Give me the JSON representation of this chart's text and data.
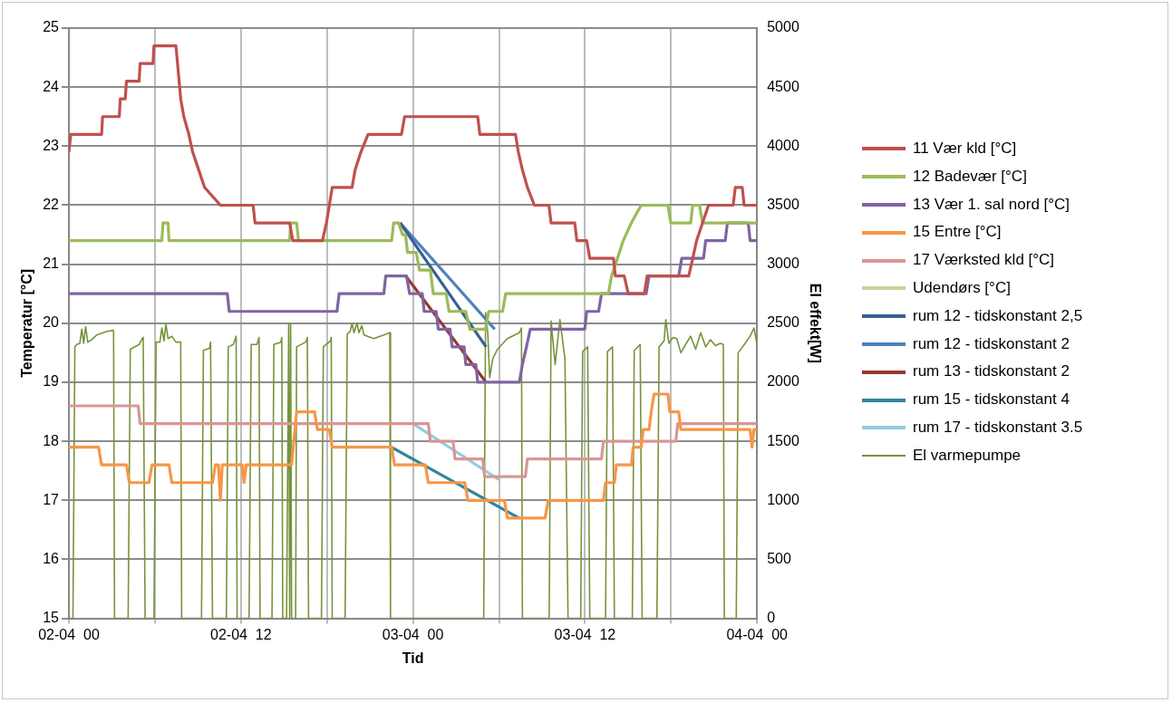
{
  "chart_data": {
    "type": "line",
    "xlabel": "Tid",
    "ylabel": "Temperatur [°C]",
    "y2label": "El effekt[W]",
    "xlim": [
      "--04-02T00:00",
      "--04-04T00:00"
    ],
    "xticks": [
      {
        "value": "--04-02T00:00",
        "label": "02-04  00"
      },
      {
        "value": "--04-02T06:00",
        "label": null
      },
      {
        "value": "--04-02T12:00",
        "label": "02-04  12"
      },
      {
        "value": "--04-02T18:00",
        "label": null
      },
      {
        "value": "--04-03T00:00",
        "label": "03-04  00"
      },
      {
        "value": "--04-03T06:00",
        "label": null
      },
      {
        "value": "--04-03T12:00",
        "label": "03-04  12"
      },
      {
        "value": "--04-03T18:00",
        "label": null
      },
      {
        "value": "--04-04T00:00",
        "label": "04-04  00"
      }
    ],
    "ylim": [
      15,
      25
    ],
    "yticks": [
      15,
      16,
      17,
      18,
      19,
      20,
      21,
      22,
      23,
      24,
      25
    ],
    "y2lim": [
      0,
      5000
    ],
    "y2ticks": [
      0,
      500,
      1000,
      1500,
      2000,
      2500,
      3000,
      3500,
      4000,
      4500,
      5000
    ],
    "grid": true,
    "legend": "right",
    "series": [
      {
        "name": "11 Vær kld [°C]",
        "color": "#c0504d",
        "x": [
          "--04-02T00:00",
          "--04-02T00:08",
          "--04-02T02:17",
          "--04-02T02:21",
          "--04-02T03:31",
          "--04-02T03:35",
          "--04-02T03:56",
          "--04-02T04:01",
          "--04-02T04:54",
          "--04-02T04:58",
          "--04-02T05:52",
          "--04-02T05:56",
          "--04-02T07:28",
          "--04-02T07:48",
          "--04-02T08:01",
          "--04-02T08:22",
          "--04-02T08:38",
          "--04-02T09:03",
          "--04-02T09:28",
          "--04-02T10:34",
          "--04-02T12:51",
          "--04-02T12:59",
          "--04-02T15:24",
          "--04-02T15:37",
          "--04-02T17:41",
          "--04-02T17:58",
          "--04-02T18:10",
          "--04-02T18:22",
          "--04-02T19:45",
          "--04-02T19:58",
          "--04-02T20:22",
          "--04-02T20:52",
          "--04-02T23:12",
          "--04-02T23:25",
          "--04-03T04:31",
          "--04-03T04:40",
          "--04-03T07:09",
          "--04-03T07:21",
          "--04-03T07:38",
          "--04-03T07:59",
          "--04-03T08:28",
          "--04-03T09:29",
          "--04-03T09:38",
          "--04-03T11:17",
          "--04-03T11:26",
          "--04-03T12:07",
          "--04-03T12:20",
          "--04-03T13:59",
          "--04-03T14:07",
          "--04-03T14:44",
          "--04-03T15:01",
          "--04-03T16:08",
          "--04-03T16:20",
          "--04-03T19:14",
          "--04-03T19:31",
          "--04-03T19:47",
          "--04-03T20:12",
          "--04-03T20:37",
          "--04-03T22:20",
          "--04-03T22:29",
          "--04-03T22:58",
          "--04-03T23:06",
          "--04-04T00:00"
        ],
        "values": [
          22.9,
          23.2,
          23.2,
          23.5,
          23.5,
          23.8,
          23.8,
          24.1,
          24.1,
          24.4,
          24.4,
          24.7,
          24.7,
          23.8,
          23.5,
          23.2,
          22.9,
          22.6,
          22.3,
          22.0,
          22.0,
          21.7,
          21.7,
          21.4,
          21.4,
          21.7,
          22.0,
          22.3,
          22.3,
          22.6,
          22.9,
          23.2,
          23.2,
          23.5,
          23.5,
          23.2,
          23.2,
          22.9,
          22.6,
          22.3,
          22.0,
          22.0,
          21.7,
          21.7,
          21.4,
          21.4,
          21.1,
          21.1,
          20.8,
          20.8,
          20.5,
          20.5,
          20.8,
          20.8,
          21.1,
          21.4,
          21.7,
          22.0,
          22.0,
          22.3,
          22.3,
          22.0,
          22.0
        ]
      },
      {
        "name": "12 Badevær [°C]",
        "color": "#9bbb59",
        "x": [
          "--04-02T00:00",
          "--04-02T06:29",
          "--04-02T06:34",
          "--04-02T06:55",
          "--04-02T06:59",
          "--04-02T15:24",
          "--04-02T15:28",
          "--04-02T15:53",
          "--04-02T16:01",
          "--04-02T22:31",
          "--04-02T22:39",
          "--04-02T23:00",
          "--04-02T23:16",
          "--04-02T23:29",
          "--04-02T23:37",
          "--04-03T00:14",
          "--04-03T00:27",
          "--04-03T01:13",
          "--04-03T01:25",
          "--04-03T02:19",
          "--04-03T02:31",
          "--04-03T03:41",
          "--04-03T03:58",
          "--04-03T05:04",
          "--04-03T05:17",
          "--04-03T06:15",
          "--04-03T06:28",
          "--04-03T13:38",
          "--04-03T13:51",
          "--04-03T14:16",
          "--04-03T14:40",
          "--04-03T15:14",
          "--04-03T15:55",
          "--04-03T17:47",
          "--04-03T17:59",
          "--04-03T19:22",
          "--04-03T19:31",
          "--04-03T19:59",
          "--04-03T20:12",
          "--04-04T00:00"
        ],
        "values": [
          21.4,
          21.4,
          21.7,
          21.7,
          21.4,
          21.4,
          21.7,
          21.7,
          21.4,
          21.4,
          21.7,
          21.7,
          21.5,
          21.5,
          21.2,
          21.2,
          20.9,
          20.9,
          20.5,
          20.5,
          20.2,
          20.2,
          19.9,
          19.9,
          20.2,
          20.2,
          20.5,
          20.5,
          20.8,
          21.1,
          21.4,
          21.7,
          22.0,
          22.0,
          21.7,
          21.7,
          22.0,
          22.0,
          21.7,
          21.7
        ]
      },
      {
        "name": "13 Vær 1. sal nord [°C]",
        "color": "#8064a2",
        "x": [
          "--04-02T00:00",
          "--04-02T11:03",
          "--04-02T11:11",
          "--04-02T18:42",
          "--04-02T18:51",
          "--04-02T21:58",
          "--04-02T22:06",
          "--04-02T23:33",
          "--04-02T23:46",
          "--04-03T00:39",
          "--04-03T00:47",
          "--04-03T01:37",
          "--04-03T01:46",
          "--04-03T02:35",
          "--04-03T02:44",
          "--04-03T03:34",
          "--04-03T03:41",
          "--04-03T04:23",
          "--04-03T04:31",
          "--04-03T07:25",
          "--04-03T07:38",
          "--04-03T07:55",
          "--04-03T08:11",
          "--04-03T11:59",
          "--04-03T12:07",
          "--04-03T12:57",
          "--04-03T13:09",
          "--04-03T16:16",
          "--04-03T16:28",
          "--04-03T18:32",
          "--04-03T18:45",
          "--04-03T20:16",
          "--04-03T20:25",
          "--04-03T21:47",
          "--04-03T21:56",
          "--04-03T23:23",
          "--04-03T23:31",
          "--04-04T00:00"
        ],
        "values": [
          20.5,
          20.5,
          20.2,
          20.2,
          20.5,
          20.5,
          20.8,
          20.8,
          20.5,
          20.5,
          20.2,
          20.2,
          19.9,
          19.9,
          19.6,
          19.6,
          19.3,
          19.3,
          19.0,
          19.0,
          19.3,
          19.6,
          19.9,
          19.9,
          20.2,
          20.2,
          20.5,
          20.5,
          20.8,
          20.8,
          21.1,
          21.1,
          21.4,
          21.4,
          21.7,
          21.7,
          21.4,
          21.4
        ]
      },
      {
        "name": "15 Entre [°C]",
        "color": "#f79646",
        "x": [
          "--04-02T00:00",
          "--04-02T02:04",
          "--04-02T02:17",
          "--04-02T04:01",
          "--04-02T04:13",
          "--04-02T05:35",
          "--04-02T05:48",
          "--04-02T06:59",
          "--04-02T07:11",
          "--04-02T10:01",
          "--04-02T10:13",
          "--04-02T10:26",
          "--04-02T10:34",
          "--04-02T10:42",
          "--04-02T12:05",
          "--04-02T12:13",
          "--04-02T12:22",
          "--04-02T15:32",
          "--04-02T15:53",
          "--04-02T17:08",
          "--04-02T17:20",
          "--04-02T18:10",
          "--04-02T18:22",
          "--04-02T22:31",
          "--04-02T22:43",
          "--04-03T00:52",
          "--04-03T01:04",
          "--04-03T03:37",
          "--04-03T03:50",
          "--04-03T06:23",
          "--04-03T06:35",
          "--04-03T09:13",
          "--04-03T09:26",
          "--04-03T13:17",
          "--04-03T13:26",
          "--04-03T14:03",
          "--04-03T14:11",
          "--04-03T15:14",
          "--04-03T15:22",
          "--04-03T15:55",
          "--04-03T16:04",
          "--04-03T16:28",
          "--04-03T16:37",
          "--04-03T16:49",
          "--04-03T17:47",
          "--04-03T17:55",
          "--04-03T18:32",
          "--04-03T18:41",
          "--04-03T23:31",
          "--04-03T23:39",
          "--04-03T23:47",
          "--04-04T00:00"
        ],
        "values": [
          17.9,
          17.9,
          17.6,
          17.6,
          17.3,
          17.3,
          17.6,
          17.6,
          17.3,
          17.3,
          17.6,
          17.6,
          17.0,
          17.6,
          17.6,
          17.3,
          17.6,
          17.6,
          18.5,
          18.5,
          18.2,
          18.2,
          17.9,
          17.9,
          17.6,
          17.6,
          17.3,
          17.3,
          17.0,
          17.0,
          16.7,
          16.7,
          17.0,
          17.0,
          17.3,
          17.3,
          17.6,
          17.6,
          17.9,
          17.9,
          18.2,
          18.2,
          18.5,
          18.8,
          18.8,
          18.5,
          18.5,
          18.2,
          18.2,
          17.9,
          18.2,
          18.2
        ]
      },
      {
        "name": "17 Værksted kld [°C]",
        "color": "#d99694",
        "x": [
          "--04-02T00:00",
          "--04-02T04:50",
          "--04-02T04:58",
          "--04-03T01:04",
          "--04-03T01:13",
          "--04-03T02:48",
          "--04-03T02:56",
          "--04-03T04:52",
          "--04-03T05:00",
          "--04-03T07:50",
          "--04-03T07:59",
          "--04-03T13:09",
          "--04-03T13:17",
          "--04-03T18:20",
          "--04-03T18:28",
          "--04-04T00:00"
        ],
        "values": [
          18.6,
          18.6,
          18.3,
          18.3,
          18.0,
          18.0,
          17.7,
          17.7,
          17.4,
          17.4,
          17.7,
          17.7,
          18.0,
          18.0,
          18.3,
          18.3
        ]
      },
      {
        "name": "Udendørs [°C]",
        "color": "#c3d69b"
      },
      {
        "name": "rum 12 - tidskonstant 2,5",
        "color": "#376092",
        "x": [
          "--04-02T23:06",
          "--04-03T05:06"
        ],
        "values": [
          21.7,
          19.6
        ]
      },
      {
        "name": "rum 12 - tidskonstant 2",
        "color": "#4f81bd",
        "x": [
          "--04-02T23:06",
          "--04-03T05:42"
        ],
        "values": [
          21.7,
          19.9
        ]
      },
      {
        "name": "rum 13 - tidskonstant 2",
        "color": "#953735",
        "x": [
          "--04-02T23:30",
          "--04-03T05:06"
        ],
        "values": [
          20.8,
          19.0
        ]
      },
      {
        "name": "rum 15 - tidskonstant 4",
        "color": "#31859c",
        "x": [
          "--04-02T22:30",
          "--04-03T07:24"
        ],
        "values": [
          17.9,
          16.7
        ]
      },
      {
        "name": "rum 17 - tidskonstant 3.5",
        "color": "#93cddd",
        "x": [
          "--04-03T00:00",
          "--04-03T06:00"
        ],
        "values": [
          18.3,
          17.35
        ]
      },
      {
        "name": "El varmepumpe",
        "color": "#77933c",
        "axis": "y2",
        "x": [
          "--04-02T00:00",
          "--04-02T00:17",
          "--04-02T00:25",
          "--04-02T00:33",
          "--04-02T00:46",
          "--04-02T00:54",
          "--04-02T01:02",
          "--04-02T01:10",
          "--04-02T01:19",
          "--04-02T01:35",
          "--04-02T01:56",
          "--04-02T02:37",
          "--04-02T03:07",
          "--04-02T03:11",
          "--04-02T04:08",
          "--04-02T04:17",
          "--04-02T04:54",
          "--04-02T05:07",
          "--04-02T05:11",
          "--04-02T05:19",
          "--04-02T05:56",
          "--04-02T06:05",
          "--04-02T06:21",
          "--04-02T06:29",
          "--04-02T06:38",
          "--04-02T06:46",
          "--04-02T06:55",
          "--04-02T07:11",
          "--04-02T07:28",
          "--04-02T07:48",
          "--04-02T07:52",
          "--04-02T09:15",
          "--04-02T09:23",
          "--04-02T09:49",
          "--04-02T09:53",
          "--04-02T10:01",
          "--04-02T10:59",
          "--04-02T11:07",
          "--04-02T11:28",
          "--04-02T11:40",
          "--04-02T11:44",
          "--04-02T12:34",
          "--04-02T12:43",
          "--04-02T13:07",
          "--04-02T13:16",
          "--04-02T13:20",
          "--04-02T14:10",
          "--04-02T14:18",
          "--04-02T14:47",
          "--04-02T14:51",
          "--04-02T14:55",
          "--04-02T15:11",
          "--04-02T15:20",
          "--04-02T15:24",
          "--04-02T15:28",
          "--04-02T15:32",
          "--04-02T15:49",
          "--04-02T15:53",
          "--04-02T16:31",
          "--04-02T16:38",
          "--04-02T16:43",
          "--04-02T17:37",
          "--04-02T17:45",
          "--04-02T18:14",
          "--04-02T18:18",
          "--04-02T18:22",
          "--04-02T19:16",
          "--04-02T19:25",
          "--04-02T19:37",
          "--04-02T19:45",
          "--04-02T19:53",
          "--04-02T20:06",
          "--04-02T20:14",
          "--04-02T20:26",
          "--04-02T20:35",
          "--04-02T21:16",
          "--04-02T21:58",
          "--04-02T22:23",
          "--04-02T22:26",
          "--04-03T04:56",
          "--04-03T05:04",
          "--04-03T05:13",
          "--04-03T05:21",
          "--04-03T05:34",
          "--04-03T05:54",
          "--04-03T06:35",
          "--04-03T07:25",
          "--04-03T07:34",
          "--04-03T07:38",
          "--04-03T09:30",
          "--04-03T09:38",
          "--04-03T09:55",
          "--04-03T10:15",
          "--04-03T10:36",
          "--04-03T10:49",
          "--04-03T11:42",
          "--04-03T11:50",
          "--04-03T12:11",
          "--04-03T12:20",
          "--04-03T13:26",
          "--04-03T13:34",
          "--04-03T13:55",
          "--04-03T14:03",
          "--04-03T15:18",
          "--04-03T15:26",
          "--04-03T15:51",
          "--04-03T15:59",
          "--04-03T17:01",
          "--04-03T17:10",
          "--04-03T17:31",
          "--04-03T17:38",
          "--04-03T17:51",
          "--04-03T18:08",
          "--04-03T18:24",
          "--04-03T18:41",
          "--04-03T19:01",
          "--04-03T19:22",
          "--04-03T19:43",
          "--04-03T20:04",
          "--04-03T20:25",
          "--04-03T20:45",
          "--04-03T21:06",
          "--04-03T21:26",
          "--04-03T21:39",
          "--04-03T21:43",
          "--04-03T22:33",
          "--04-03T22:41",
          "--04-03T23:10",
          "--04-03T23:31",
          "--04-03T23:47",
          "--04-04T00:00"
        ],
        "values": [
          0,
          0,
          2300,
          2320,
          2330,
          2450,
          2330,
          2470,
          2340,
          2360,
          2400,
          2430,
          2440,
          0,
          0,
          2280,
          2320,
          2370,
          2380,
          0,
          0,
          2340,
          2340,
          2460,
          2350,
          2490,
          2370,
          2390,
          2340,
          2340,
          0,
          0,
          2270,
          2290,
          2340,
          0,
          0,
          2300,
          2320,
          2390,
          0,
          0,
          2320,
          2320,
          2380,
          0,
          0,
          2320,
          2340,
          2380,
          0,
          0,
          2500,
          0,
          2500,
          0,
          0,
          2300,
          2340,
          2380,
          0,
          0,
          2300,
          2350,
          2380,
          0,
          0,
          2410,
          2430,
          2500,
          2420,
          2500,
          2420,
          2480,
          2400,
          2370,
          2400,
          2420,
          0,
          0,
          2590,
          2420,
          2040,
          2200,
          2280,
          2370,
          2420,
          2460,
          0,
          0,
          2520,
          2150,
          2530,
          2200,
          0,
          0,
          2260,
          2300,
          0,
          0,
          2260,
          2300,
          0,
          0,
          2270,
          2320,
          0,
          0,
          2300,
          2350,
          2530,
          2330,
          2380,
          2370,
          2250,
          2320,
          2390,
          2280,
          2420,
          2300,
          2360,
          2310,
          2330,
          2320,
          0,
          0,
          2250,
          2330,
          2390,
          2460,
          2320
        ]
      }
    ]
  }
}
